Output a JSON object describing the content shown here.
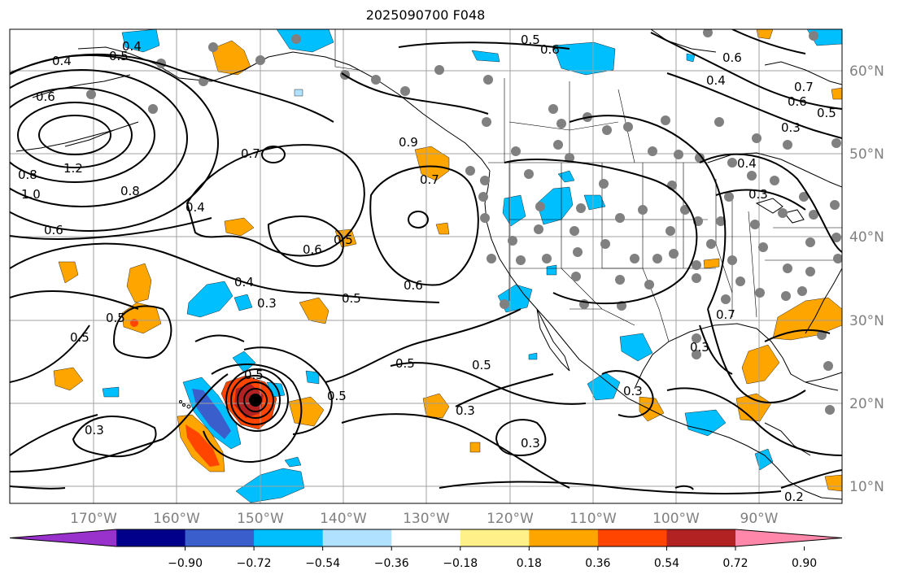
{
  "title": "2025090700 F048",
  "lon_labels": [
    "170°W",
    "160°W",
    "150°W",
    "140°W",
    "130°W",
    "120°W",
    "110°W",
    "100°W",
    "90°W"
  ],
  "lat_labels": [
    "60°N",
    "50°N",
    "40°N",
    "30°N",
    "20°N",
    "10°N"
  ],
  "colorbar": {
    "colors": [
      "#9932cc",
      "#00008b",
      "#3a5fcd",
      "#00bfff",
      "#b0e2ff",
      "#ffffff",
      "#fff08a",
      "#ffa500",
      "#ff4500",
      "#b22222",
      "#ff88aa"
    ],
    "tick_labels": [
      "−0.90",
      "−0.72",
      "−0.54",
      "−0.36",
      "−0.18",
      "0.18",
      "0.36",
      "0.54",
      "0.72",
      "0.90"
    ]
  },
  "contour_labels": [
    "0.4",
    "0.5",
    "0.4",
    "0.6",
    "0.6",
    "0.4",
    "0.7",
    "0.5",
    "0.3",
    "0.6",
    "1.2",
    "1.0",
    "0.8",
    "0.8",
    "0.6",
    "0.7",
    "0.7",
    "0.4",
    "0.6",
    "0.5",
    "0.4",
    "0.3",
    "0.5",
    "0.6",
    "0.4",
    "0.3",
    "0.5",
    "0.5",
    "0.5",
    "0.5",
    "0.3",
    "0.5",
    "0.5",
    "0.3",
    "0.3",
    "0.3",
    "0.3",
    "0.5",
    "0.2",
    "0.6",
    "0.9",
    "0.7"
  ],
  "colors": {
    "land_outline": "#000000",
    "grid": "#a0a0a0",
    "station_dot": "#808080",
    "contour": "#000000"
  }
}
